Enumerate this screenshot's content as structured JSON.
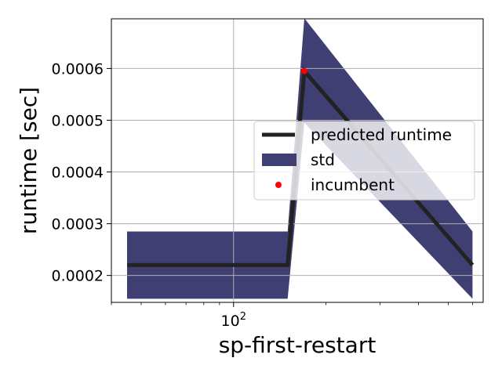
{
  "chart_data": {
    "type": "line",
    "xlabel": "sp-first-restart",
    "ylabel": "runtime [sec]",
    "x_scale": "log",
    "xlim": [
      40,
      650
    ],
    "ylim": [
      0.000148,
      0.000696
    ],
    "x_major_tick": {
      "value": 100,
      "base": "10",
      "exp": "2"
    },
    "x_minor_ticks": [
      40,
      50,
      60,
      70,
      80,
      90,
      200,
      300,
      400,
      500,
      600
    ],
    "y_ticks": [
      {
        "value": 0.0002,
        "label": "0.0002"
      },
      {
        "value": 0.0003,
        "label": "0.0003"
      },
      {
        "value": 0.0004,
        "label": "0.0004"
      },
      {
        "value": 0.0005,
        "label": "0.0005"
      },
      {
        "value": 0.0006,
        "label": "0.0006"
      }
    ],
    "grid": true,
    "legend_position": "center-right",
    "series": [
      {
        "name": "predicted runtime",
        "kind": "line",
        "color": "#222222",
        "x": [
          45,
          150,
          170,
          600
        ],
        "y": [
          0.00022,
          0.00022,
          0.000595,
          0.00022
        ]
      },
      {
        "name": "std",
        "kind": "band",
        "color": "#3f3f74",
        "x": [
          45,
          150,
          170,
          600
        ],
        "lower": [
          0.000155,
          0.000155,
          0.000495,
          0.000155
        ],
        "upper": [
          0.000285,
          0.000285,
          0.000697,
          0.000285
        ]
      },
      {
        "name": "incumbent",
        "kind": "scatter",
        "color": "#ff0000",
        "x": [
          170
        ],
        "y": [
          0.000595
        ]
      }
    ]
  }
}
